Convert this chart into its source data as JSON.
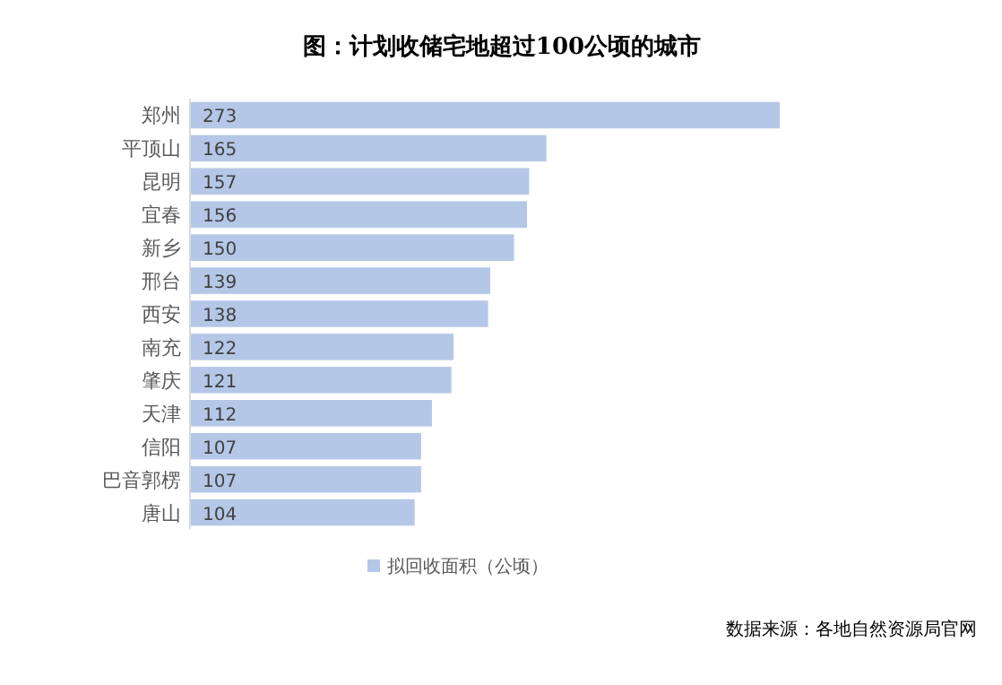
{
  "chart_data": {
    "type": "bar",
    "orientation": "horizontal",
    "title": "图：计划收储宅地超过100公顷的城市",
    "categories": [
      "郑州",
      "平顶山",
      "昆明",
      "宜春",
      "新乡",
      "邢台",
      "西安",
      "南充",
      "肇庆",
      "天津",
      "信阳",
      "巴音郭楞",
      "唐山"
    ],
    "series": [
      {
        "name": "拟回收面积（公顷）",
        "color": "#b4c7e7",
        "values": [
          273,
          165,
          157,
          156,
          150,
          139,
          138,
          122,
          121,
          112,
          107,
          107,
          104
        ]
      }
    ],
    "data_labels": true,
    "legend": "bottom",
    "annotations": [
      "数据来源：各地自然资源局官网"
    ]
  }
}
